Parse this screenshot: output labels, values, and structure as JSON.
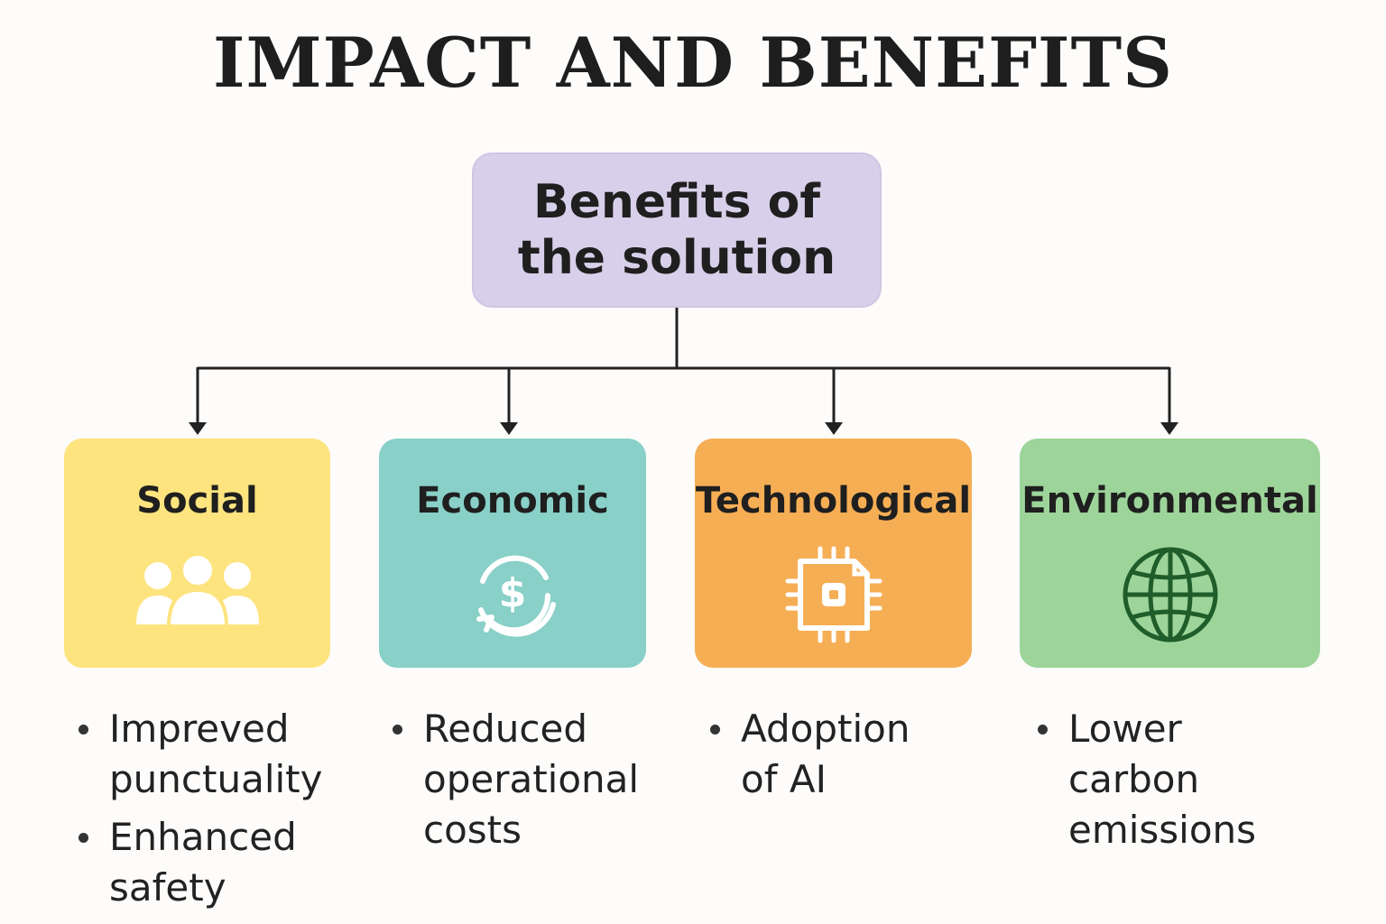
{
  "title": "IMPACT AND BENEFITS",
  "root": {
    "line1": "Benefits of",
    "line2": "the solution",
    "color": "#d8d0ea"
  },
  "categories": [
    {
      "title": "Social",
      "icon": "people-group-icon",
      "color": "#fde47f",
      "bullets": [
        {
          "line1": "Impreved",
          "line2": "punctuality"
        },
        {
          "line1": "Enhanced",
          "line2": "safety"
        }
      ]
    },
    {
      "title": "Economic",
      "icon": "dollar-cycle-icon",
      "color": "#88d0c8",
      "bullets": [
        {
          "line1": "Reduced",
          "line2": "operational",
          "line3": "costs"
        }
      ]
    },
    {
      "title": "Technological",
      "icon": "chip-icon",
      "color": "#f6ae55",
      "bullets": [
        {
          "line1": "Adoption",
          "line2": "of AI"
        }
      ]
    },
    {
      "title": "Environmental",
      "icon": "globe-icon",
      "color": "#9dd49a",
      "bullets": [
        {
          "line1": "Lower",
          "line2": "carbon",
          "line3": "emissions"
        }
      ]
    }
  ]
}
